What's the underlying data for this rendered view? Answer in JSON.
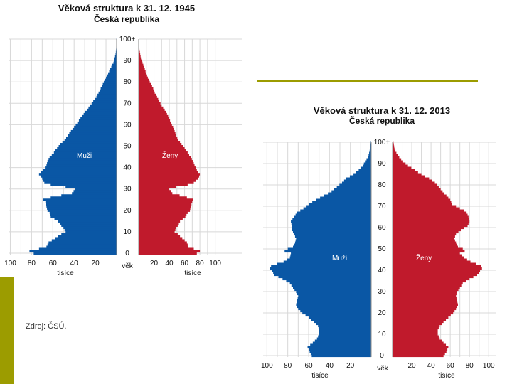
{
  "colors": {
    "male": "#0a57a5",
    "female": "#c01a2c",
    "accent": "#9c9c00",
    "left_bar": "#9c9c00"
  },
  "source_note": "Zdroj: ČSÚ.",
  "chart_data": [
    {
      "type": "bar",
      "orientation": "horizontal-pyramid",
      "title": "Věková struktura k 31. 12. 1945",
      "subtitle": "Česká republika",
      "y_axis_label": "věk",
      "y_ticks": [
        "0",
        "10",
        "20",
        "30",
        "40",
        "50",
        "60",
        "70",
        "80",
        "90",
        "100+"
      ],
      "x_ticks": [
        "100",
        "80",
        "60",
        "40",
        "20"
      ],
      "x_ticks_right": [
        "20",
        "40",
        "60",
        "80",
        "100"
      ],
      "xlabel": "tisíce",
      "xlim": [
        0,
        100
      ],
      "ylim": [
        0,
        100
      ],
      "series_labels": {
        "male": "Muži",
        "female": "Ženy"
      },
      "male_profile": [
        [
          0,
          78
        ],
        [
          1,
          82
        ],
        [
          2,
          73
        ],
        [
          3,
          66
        ],
        [
          5,
          64
        ],
        [
          7,
          58
        ],
        [
          9,
          52
        ],
        [
          10,
          48
        ],
        [
          12,
          50
        ],
        [
          13,
          52
        ],
        [
          15,
          55
        ],
        [
          17,
          62
        ],
        [
          19,
          63
        ],
        [
          20,
          65
        ],
        [
          22,
          66
        ],
        [
          24,
          67
        ],
        [
          25,
          69
        ],
        [
          26,
          62
        ],
        [
          28,
          42
        ],
        [
          30,
          39
        ],
        [
          31,
          48
        ],
        [
          32,
          62
        ],
        [
          33,
          68
        ],
        [
          35,
          70
        ],
        [
          37,
          73
        ],
        [
          39,
          69
        ],
        [
          41,
          66
        ],
        [
          43,
          65
        ],
        [
          45,
          63
        ],
        [
          47,
          59
        ],
        [
          49,
          56
        ],
        [
          51,
          53
        ],
        [
          53,
          49
        ],
        [
          55,
          46
        ],
        [
          57,
          43
        ],
        [
          59,
          40
        ],
        [
          61,
          37
        ],
        [
          63,
          34
        ],
        [
          65,
          31
        ],
        [
          67,
          28
        ],
        [
          69,
          25
        ],
        [
          71,
          22
        ],
        [
          73,
          19
        ],
        [
          75,
          17
        ],
        [
          77,
          15
        ],
        [
          79,
          13
        ],
        [
          81,
          11
        ],
        [
          83,
          9
        ],
        [
          85,
          7
        ],
        [
          87,
          5
        ],
        [
          89,
          3
        ],
        [
          91,
          2
        ],
        [
          93,
          1
        ],
        [
          95,
          0.5
        ],
        [
          97,
          0.2
        ],
        [
          100,
          0.1
        ]
      ],
      "female_profile": [
        [
          0,
          76
        ],
        [
          1,
          80
        ],
        [
          2,
          72
        ],
        [
          3,
          65
        ],
        [
          5,
          63
        ],
        [
          7,
          57
        ],
        [
          9,
          51
        ],
        [
          10,
          47
        ],
        [
          12,
          49
        ],
        [
          13,
          51
        ],
        [
          15,
          54
        ],
        [
          17,
          61
        ],
        [
          19,
          64
        ],
        [
          20,
          67
        ],
        [
          22,
          68
        ],
        [
          24,
          70
        ],
        [
          25,
          71
        ],
        [
          26,
          63
        ],
        [
          28,
          44
        ],
        [
          30,
          40
        ],
        [
          31,
          49
        ],
        [
          32,
          64
        ],
        [
          33,
          72
        ],
        [
          35,
          78
        ],
        [
          37,
          80
        ],
        [
          39,
          76
        ],
        [
          41,
          73
        ],
        [
          43,
          71
        ],
        [
          45,
          68
        ],
        [
          47,
          64
        ],
        [
          49,
          60
        ],
        [
          51,
          56
        ],
        [
          53,
          52
        ],
        [
          55,
          49
        ],
        [
          57,
          47
        ],
        [
          59,
          45
        ],
        [
          61,
          42
        ],
        [
          63,
          40
        ],
        [
          65,
          37
        ],
        [
          67,
          34
        ],
        [
          69,
          30
        ],
        [
          71,
          27
        ],
        [
          73,
          24
        ],
        [
          75,
          21
        ],
        [
          77,
          19
        ],
        [
          79,
          16
        ],
        [
          81,
          13
        ],
        [
          83,
          11
        ],
        [
          85,
          9
        ],
        [
          87,
          7
        ],
        [
          89,
          5
        ],
        [
          91,
          3
        ],
        [
          93,
          2
        ],
        [
          95,
          1
        ],
        [
          97,
          0.5
        ],
        [
          100,
          0.3
        ]
      ]
    },
    {
      "type": "bar",
      "orientation": "horizontal-pyramid",
      "title": "Věková struktura k 31. 12. 2013",
      "subtitle": "Česká republika",
      "y_axis_label": "věk",
      "y_ticks": [
        "0",
        "10",
        "20",
        "30",
        "40",
        "50",
        "60",
        "70",
        "80",
        "90",
        "100+"
      ],
      "x_ticks": [
        "100",
        "80",
        "60",
        "40",
        "20"
      ],
      "x_ticks_right": [
        "20",
        "40",
        "60",
        "80",
        "100"
      ],
      "xlabel": "tisíce",
      "xlim": [
        0,
        100
      ],
      "ylim": [
        0,
        100
      ],
      "series_labels": {
        "male": "Muži",
        "female": "Ženy"
      },
      "male_profile": [
        [
          0,
          57
        ],
        [
          2,
          59
        ],
        [
          4,
          61
        ],
        [
          6,
          56
        ],
        [
          8,
          52
        ],
        [
          10,
          50
        ],
        [
          12,
          50
        ],
        [
          14,
          51
        ],
        [
          16,
          55
        ],
        [
          18,
          60
        ],
        [
          20,
          66
        ],
        [
          22,
          70
        ],
        [
          24,
          72
        ],
        [
          26,
          71
        ],
        [
          28,
          70
        ],
        [
          30,
          72
        ],
        [
          32,
          75
        ],
        [
          34,
          78
        ],
        [
          36,
          85
        ],
        [
          38,
          93
        ],
        [
          40,
          95
        ],
        [
          41,
          97
        ],
        [
          42,
          96
        ],
        [
          44,
          84
        ],
        [
          46,
          78
        ],
        [
          48,
          77
        ],
        [
          49,
          83
        ],
        [
          50,
          80
        ],
        [
          51,
          75
        ],
        [
          53,
          73
        ],
        [
          55,
          72
        ],
        [
          57,
          74
        ],
        [
          59,
          76
        ],
        [
          61,
          76
        ],
        [
          63,
          77
        ],
        [
          65,
          74
        ],
        [
          67,
          71
        ],
        [
          68,
          68
        ],
        [
          70,
          62
        ],
        [
          71,
          60
        ],
        [
          73,
          53
        ],
        [
          75,
          45
        ],
        [
          77,
          38
        ],
        [
          79,
          33
        ],
        [
          81,
          28
        ],
        [
          83,
          24
        ],
        [
          85,
          17
        ],
        [
          87,
          12
        ],
        [
          89,
          8
        ],
        [
          91,
          6
        ],
        [
          93,
          3
        ],
        [
          95,
          2
        ],
        [
          97,
          1
        ],
        [
          100,
          0.5
        ]
      ],
      "female_profile": [
        [
          0,
          53
        ],
        [
          2,
          56
        ],
        [
          4,
          58
        ],
        [
          6,
          53
        ],
        [
          8,
          49
        ],
        [
          10,
          47
        ],
        [
          12,
          47
        ],
        [
          14,
          49
        ],
        [
          16,
          53
        ],
        [
          18,
          58
        ],
        [
          20,
          63
        ],
        [
          22,
          66
        ],
        [
          24,
          68
        ],
        [
          26,
          67
        ],
        [
          28,
          66
        ],
        [
          30,
          67
        ],
        [
          32,
          70
        ],
        [
          34,
          73
        ],
        [
          36,
          80
        ],
        [
          38,
          88
        ],
        [
          40,
          91
        ],
        [
          41,
          93
        ],
        [
          42,
          92
        ],
        [
          44,
          81
        ],
        [
          46,
          74
        ],
        [
          48,
          70
        ],
        [
          49,
          75
        ],
        [
          50,
          73
        ],
        [
          51,
          68
        ],
        [
          53,
          66
        ],
        [
          55,
          64
        ],
        [
          57,
          66
        ],
        [
          59,
          71
        ],
        [
          61,
          78
        ],
        [
          63,
          80
        ],
        [
          65,
          79
        ],
        [
          67,
          77
        ],
        [
          68,
          74
        ],
        [
          70,
          66
        ],
        [
          71,
          62
        ],
        [
          73,
          60
        ],
        [
          75,
          56
        ],
        [
          77,
          52
        ],
        [
          79,
          48
        ],
        [
          81,
          44
        ],
        [
          83,
          38
        ],
        [
          85,
          30
        ],
        [
          87,
          23
        ],
        [
          89,
          16
        ],
        [
          91,
          11
        ],
        [
          93,
          7
        ],
        [
          95,
          4
        ],
        [
          97,
          2
        ],
        [
          100,
          1
        ]
      ]
    }
  ]
}
